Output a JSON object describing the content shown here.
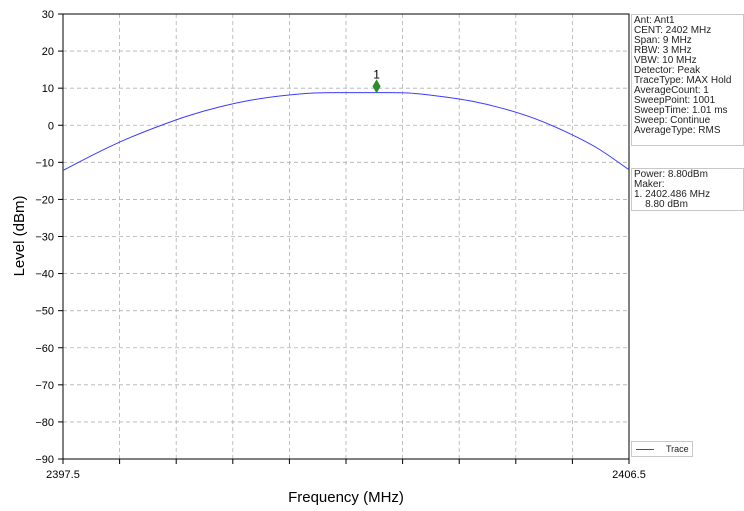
{
  "chart_data": {
    "type": "line",
    "xlabel": "Frequency (MHz)",
    "ylabel": "Level (dBm)",
    "xlim": [
      2397.5,
      2406.5
    ],
    "ylim": [
      -90,
      30
    ],
    "x_ticks": [
      "2397.5",
      "2406.5"
    ],
    "y_ticks": [
      30,
      20,
      10,
      0,
      -10,
      -20,
      -30,
      -40,
      -50,
      -60,
      -70,
      -80,
      -90
    ],
    "grid": true,
    "legend_position": "bottom-right",
    "series": [
      {
        "name": "Trace",
        "color": "#3b3bff",
        "x": [
          2397.5,
          2398.0,
          2398.5,
          2399.0,
          2399.5,
          2400.0,
          2400.5,
          2401.0,
          2401.5,
          2402.0,
          2402.5,
          2403.0,
          2403.5,
          2404.0,
          2404.5,
          2405.0,
          2405.5,
          2406.0,
          2406.5
        ],
        "y": [
          -12.2,
          -7.8,
          -3.8,
          -0.4,
          2.6,
          5.0,
          6.8,
          8.0,
          8.7,
          8.8,
          8.8,
          8.7,
          7.8,
          6.5,
          4.5,
          1.8,
          -1.8,
          -6.2,
          -12.0
        ]
      }
    ],
    "marker": {
      "label": "1",
      "x": 2402.486,
      "y": 10.5,
      "color": "#2e8b2e"
    }
  },
  "info_panel": {
    "lines": [
      "Ant: Ant1",
      "CENT: 2402 MHz",
      "Span: 9 MHz",
      "RBW: 3 MHz",
      "VBW: 10 MHz",
      "Detector: Peak",
      "TraceType: MAX Hold",
      "AverageCount: 1",
      "SweepPoint: 1001",
      "SweepTime: 1.01 ms",
      "Sweep: Continue",
      "AverageType: RMS"
    ]
  },
  "power_panel": {
    "lines": [
      "Power: 8.80dBm",
      "Maker:",
      "1. 2402.486 MHz",
      "    8.80 dBm"
    ]
  },
  "legend": {
    "label": "Trace"
  }
}
